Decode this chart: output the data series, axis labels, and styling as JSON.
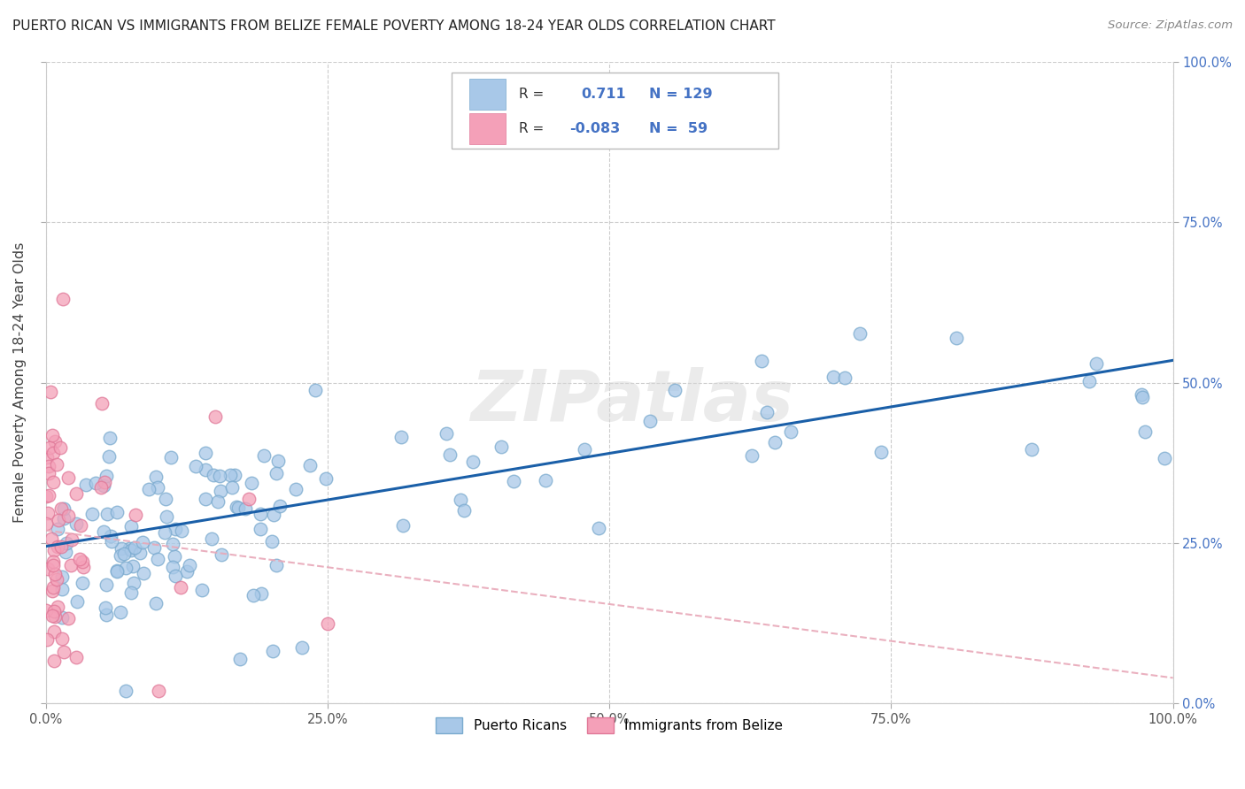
{
  "title": "PUERTO RICAN VS IMMIGRANTS FROM BELIZE FEMALE POVERTY AMONG 18-24 YEAR OLDS CORRELATION CHART",
  "source": "Source: ZipAtlas.com",
  "ylabel": "Female Poverty Among 18-24 Year Olds",
  "xlim": [
    0,
    1.0
  ],
  "ylim": [
    0,
    1.0
  ],
  "tick_vals": [
    0.0,
    0.25,
    0.5,
    0.75,
    1.0
  ],
  "xticklabels": [
    "0.0%",
    "25.0%",
    "50.0%",
    "75.0%",
    "100.0%"
  ],
  "right_yticklabels": [
    "0.0%",
    "25.0%",
    "50.0%",
    "75.0%",
    "100.0%"
  ],
  "blue_R": 0.711,
  "blue_N": 129,
  "pink_R": -0.083,
  "pink_N": 59,
  "blue_color": "#a8c8e8",
  "pink_color": "#f4a0b8",
  "blue_edge_color": "#7aaace",
  "pink_edge_color": "#e07898",
  "blue_line_color": "#1a5fa8",
  "pink_line_color": "#e8a8b8",
  "legend_label_blue": "Puerto Ricans",
  "legend_label_pink": "Immigrants from Belize",
  "watermark": "ZIPatlas",
  "blue_trend_x": [
    0.0,
    1.0
  ],
  "blue_trend_y": [
    0.245,
    0.535
  ],
  "pink_trend_x": [
    0.0,
    1.0
  ],
  "pink_trend_y": [
    0.27,
    0.04
  ]
}
